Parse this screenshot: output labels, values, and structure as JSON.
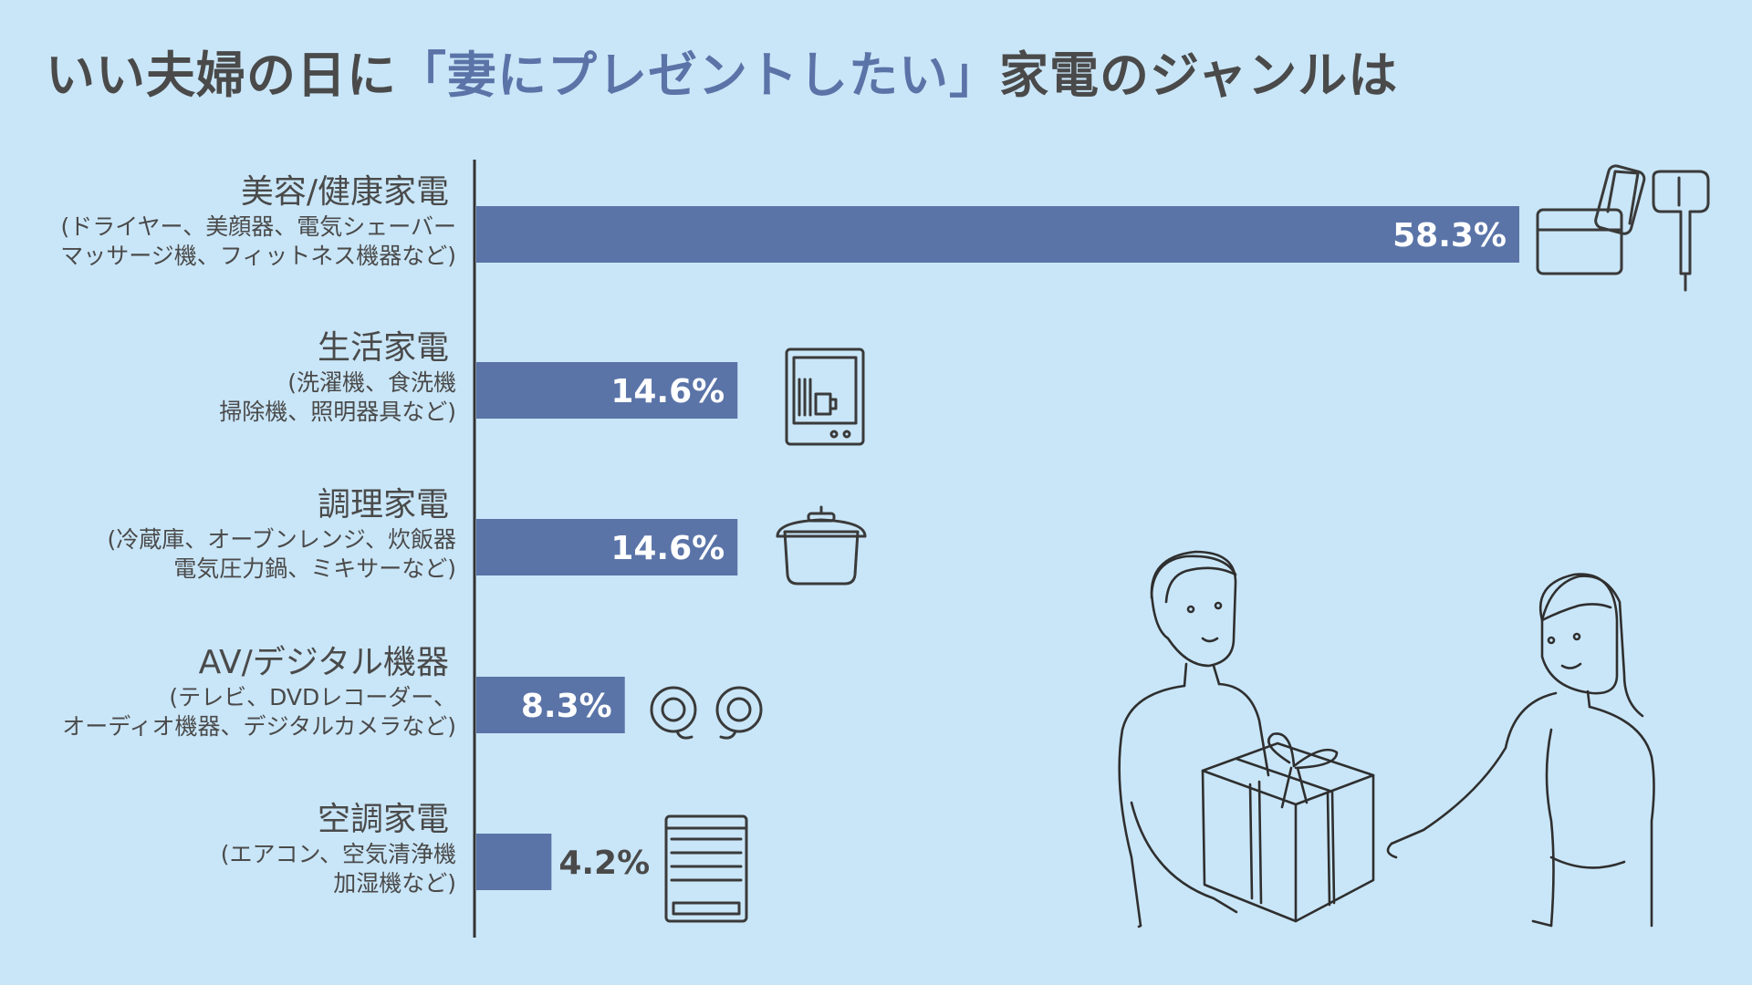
{
  "title": {
    "pre": "いい夫婦の日に",
    "highlight": "「妻にプレゼントしたい」",
    "post": "家電のジャンルは"
  },
  "colors": {
    "background": "#c9e6f8",
    "bar": "#5a74a8",
    "text": "#4a4a4a",
    "highlight": "#5a74a8"
  },
  "chart_data": {
    "type": "bar",
    "orientation": "horizontal",
    "xlim": [
      0,
      58.3
    ],
    "categories": [
      {
        "name": "美容/健康家電",
        "sub": [
          "(ドライヤー、美顔器、電気シェーバー",
          "マッサージ機、フィットネス機器など)"
        ],
        "value": 58.3,
        "label": "58.3%",
        "icon": "massage-chair-and-hair-dryer-icon"
      },
      {
        "name": "生活家電",
        "sub": [
          "(洗濯機、食洗機",
          "掃除機、照明器具など)"
        ],
        "value": 14.6,
        "label": "14.6%",
        "icon": "dishwasher-icon"
      },
      {
        "name": "調理家電",
        "sub": [
          "(冷蔵庫、オーブンレンジ、炊飯器",
          "電気圧力鍋、ミキサーなど)"
        ],
        "value": 14.6,
        "label": "14.6%",
        "icon": "pressure-cooker-icon"
      },
      {
        "name": "AV/デジタル機器",
        "sub": [
          "(テレビ、DVDレコーダー、",
          "オーディオ機器、デジタルカメラなど)"
        ],
        "value": 8.3,
        "label": "8.3%",
        "icon": "earbuds-icon"
      },
      {
        "name": "空調家電",
        "sub": [
          "(エアコン、空気清浄機",
          "加湿機など)"
        ],
        "value": 4.2,
        "label": "4.2%",
        "icon": "air-purifier-icon"
      }
    ]
  }
}
